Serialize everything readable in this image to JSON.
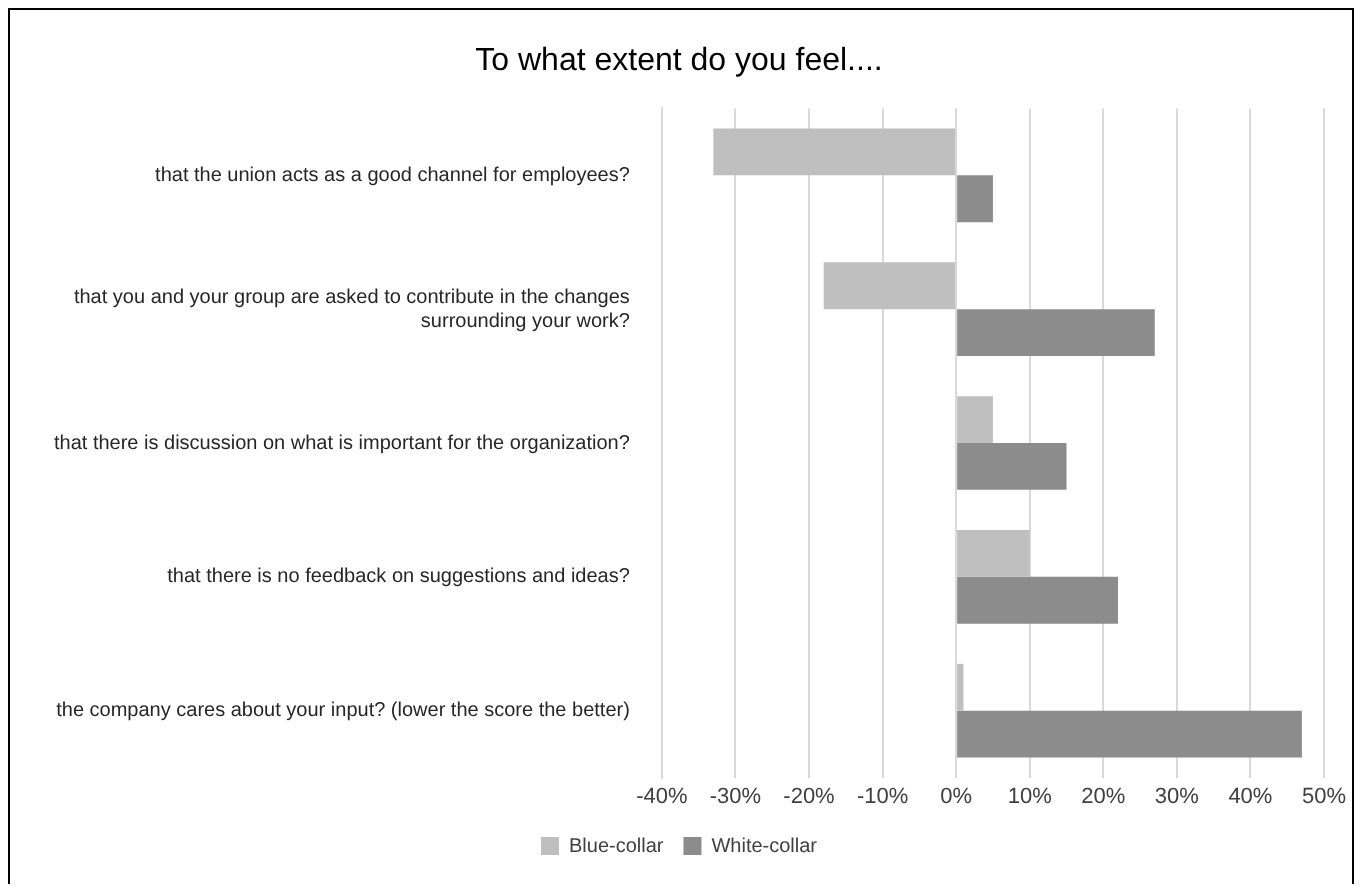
{
  "chart_data": {
    "type": "bar",
    "orientation": "horizontal",
    "title": "To what extent do you feel....",
    "categories": [
      "that the union acts as a good channel for employees?",
      "that you and your group are asked to contribute in the changes surrounding your work?",
      "that there is discussion on what is important for the organization?",
      "that there is no feedback on suggestions and ideas?",
      "the company cares about your input? (lower the score the better)"
    ],
    "series": [
      {
        "name": "Blue-collar",
        "color": "#bfbfbf",
        "values": [
          -33,
          -18,
          5,
          10,
          1
        ]
      },
      {
        "name": "White-collar",
        "color": "#8c8c8c",
        "values": [
          5,
          27,
          15,
          22,
          47
        ]
      }
    ],
    "xlim": [
      -40,
      50
    ],
    "xticks": [
      {
        "value": -40,
        "label": "-40%"
      },
      {
        "value": -30,
        "label": "-30%"
      },
      {
        "value": -20,
        "label": "-20%"
      },
      {
        "value": -10,
        "label": "-10%"
      },
      {
        "value": 0,
        "label": "0%"
      },
      {
        "value": 10,
        "label": "10%"
      },
      {
        "value": 20,
        "label": "20%"
      },
      {
        "value": 30,
        "label": "30%"
      },
      {
        "value": 40,
        "label": "40%"
      },
      {
        "value": 50,
        "label": "50%"
      }
    ],
    "grid": "x",
    "legend": "bottom"
  }
}
